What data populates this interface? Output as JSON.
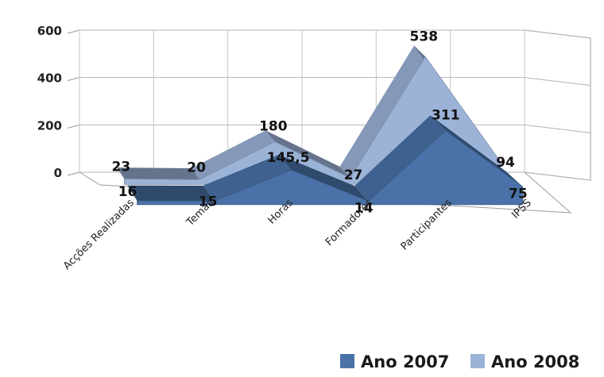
{
  "chart_data": {
    "type": "area",
    "categories": [
      "Acções Realizadas",
      "Temas",
      "Horas",
      "Formadores",
      "Participantes",
      "IPSS"
    ],
    "series": [
      {
        "name": "Ano 2007",
        "values": [
          16,
          15,
          145.5,
          14,
          311,
          75
        ],
        "labels": [
          "16",
          "15",
          "145,5",
          "14",
          "311",
          "75"
        ],
        "color": "#4a72a8"
      },
      {
        "name": "Ano 2008",
        "values": [
          23,
          20,
          180,
          27,
          538,
          94
        ],
        "labels": [
          "23",
          "20",
          "180",
          "27",
          "538",
          "94"
        ],
        "color": "#9cb3d8"
      }
    ],
    "ylim": [
      0,
      600
    ],
    "yticks": [
      "0",
      "200",
      "400",
      "600"
    ],
    "grid": true,
    "legend_position": "bottom-right"
  }
}
